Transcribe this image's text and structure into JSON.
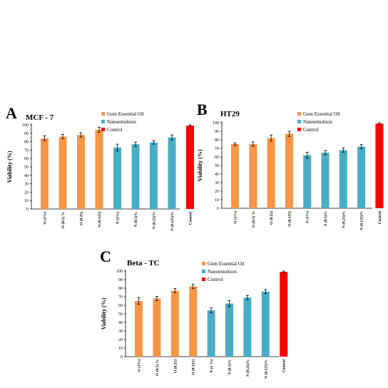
{
  "colors": {
    "gum": "#F79646",
    "nano": "#4BACC6",
    "control": "#FF0000"
  },
  "chart_data": [
    {
      "type": "bar",
      "panel": "A",
      "title": "MCF - 7",
      "ylabel": "Viability (%)",
      "ylim": [
        0,
        100
      ],
      "yticks": [
        0,
        10,
        20,
        30,
        40,
        50,
        60,
        70,
        80,
        90,
        100
      ],
      "categories": [
        "O (1%)",
        "O (0.5) %",
        "O (0.25)",
        "O (0.125)",
        "N (1%)",
        "N (0.5)%",
        "N (0.25)%",
        "N (0.125)%",
        "Control"
      ],
      "values": [
        84,
        86,
        88,
        94,
        73,
        77,
        79,
        85,
        99
      ],
      "errors": [
        3,
        2.5,
        2.5,
        3,
        4,
        2.5,
        2,
        3,
        1
      ],
      "groups": [
        "gum",
        "gum",
        "gum",
        "gum",
        "nano",
        "nano",
        "nano",
        "nano",
        "control"
      ],
      "legend": [
        "Gum Essential Oil",
        "Nanoemulsion",
        "Control"
      ],
      "legend_position": "top-right",
      "grid": false
    },
    {
      "type": "bar",
      "panel": "B",
      "title": "HT29",
      "ylabel": "Viability (%)",
      "ylim": [
        0,
        100
      ],
      "yticks": [
        0,
        10,
        20,
        30,
        40,
        50,
        60,
        70,
        80,
        90,
        100
      ],
      "categories": [
        "O (1%)",
        "O (0.5) %",
        "O (0.25)",
        "O (0.125)",
        "N (1%)",
        "N (0.5)%",
        "N (0.25)%",
        "N (0.125)%",
        "Control"
      ],
      "values": [
        75,
        75,
        82,
        87,
        62,
        65,
        68,
        72,
        99
      ],
      "errors": [
        1.5,
        2.5,
        3.5,
        3,
        3.5,
        2.5,
        2.5,
        2.5,
        1
      ],
      "groups": [
        "gum",
        "gum",
        "gum",
        "gum",
        "nano",
        "nano",
        "nano",
        "nano",
        "control"
      ],
      "legend": [
        "Gum Essential Oil",
        "Nanoemulsion",
        "Control"
      ],
      "legend_position": "top-right",
      "grid": false
    },
    {
      "type": "bar",
      "panel": "C",
      "title": "Beta - TC",
      "ylabel": "Viability (%)",
      "ylim": [
        0,
        100
      ],
      "yticks": [
        0,
        10,
        20,
        30,
        40,
        50,
        60,
        70,
        80,
        90,
        100
      ],
      "categories": [
        "O (1%)",
        "O (0.5) %",
        "O (0.25)",
        "O (0.125)",
        "N (1 %)",
        "N (0.5)%",
        "N (0.25)%",
        "N (0.125)%",
        "Control"
      ],
      "values": [
        65,
        68,
        77,
        82,
        54,
        62,
        69,
        76,
        99
      ],
      "errors": [
        4,
        2.5,
        2.5,
        2.5,
        3,
        3.5,
        2.5,
        2.5,
        1
      ],
      "groups": [
        "gum",
        "gum",
        "gum",
        "gum",
        "nano",
        "nano",
        "nano",
        "nano",
        "control"
      ],
      "legend": [
        "Gum Essential Oil",
        "Nanoemulsion",
        "Control"
      ],
      "legend_position": "top-right",
      "grid": false
    }
  ]
}
